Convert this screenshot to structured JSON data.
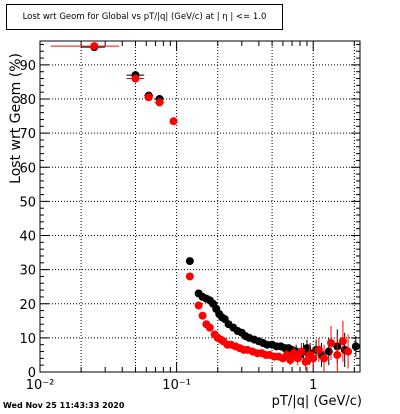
{
  "title": "Lost wrt Geom for Global vs pT/|q| (GeV/c) at | η | <= 1.0",
  "timestamp": "Wed Nov 25 11:43:33 2020",
  "colors": {
    "series_black": "#000000",
    "series_red": "#ff0000",
    "grid": "#000000"
  },
  "chart_data": {
    "type": "scatter",
    "xlabel": "pT/|q| (GeV/c)",
    "ylabel": "Lost wrt Geom (%)",
    "xscale": "log",
    "xlim": [
      0.01,
      2.2
    ],
    "ylim": [
      0,
      97
    ],
    "grid": true,
    "x_ticks": [
      {
        "value": 0.01,
        "label": "10⁻²"
      },
      {
        "value": 0.1,
        "label": "10⁻¹"
      },
      {
        "value": 1,
        "label": "1"
      }
    ],
    "y_ticks": [
      0,
      10,
      20,
      30,
      40,
      50,
      60,
      70,
      80,
      90
    ],
    "series": [
      {
        "color": "#000000",
        "points": [
          {
            "x": 0.025,
            "y": 95.2,
            "xerr": [
              0.02,
              0.03
            ]
          },
          {
            "x": 0.05,
            "y": 87.0,
            "xerr": [
              0.043,
              0.058
            ]
          },
          {
            "x": 0.0625,
            "y": 81.0,
            "xerr": [
              0.058,
              0.067
            ]
          },
          {
            "x": 0.075,
            "y": 80.0,
            "xerr": [
              0.069,
              0.081
            ]
          },
          {
            "x": 0.125,
            "y": 32.5,
            "xerr": [
              0.117,
              0.133
            ]
          },
          {
            "x": 0.145,
            "y": 23.0
          },
          {
            "x": 0.155,
            "y": 22.0
          },
          {
            "x": 0.165,
            "y": 21.5
          },
          {
            "x": 0.175,
            "y": 21.0
          },
          {
            "x": 0.185,
            "y": 20.0
          },
          {
            "x": 0.195,
            "y": 18.5
          },
          {
            "x": 0.205,
            "y": 17.0
          },
          {
            "x": 0.215,
            "y": 16.0
          },
          {
            "x": 0.225,
            "y": 15.5
          },
          {
            "x": 0.24,
            "y": 14.0
          },
          {
            "x": 0.26,
            "y": 13.0
          },
          {
            "x": 0.28,
            "y": 12.0
          },
          {
            "x": 0.3,
            "y": 11.5
          },
          {
            "x": 0.32,
            "y": 10.5
          },
          {
            "x": 0.34,
            "y": 10.0
          },
          {
            "x": 0.37,
            "y": 9.5
          },
          {
            "x": 0.4,
            "y": 9.0
          },
          {
            "x": 0.43,
            "y": 8.5
          },
          {
            "x": 0.46,
            "y": 8.0
          },
          {
            "x": 0.5,
            "y": 8.0
          },
          {
            "x": 0.54,
            "y": 7.5
          },
          {
            "x": 0.58,
            "y": 7.5
          },
          {
            "x": 0.62,
            "y": 7.0
          },
          {
            "x": 0.66,
            "y": 7.0
          },
          {
            "x": 0.7,
            "y": 6.5
          },
          {
            "x": 0.75,
            "y": 6.0,
            "yerr": 2.0
          },
          {
            "x": 0.8,
            "y": 5.0,
            "yerr": 2.0
          },
          {
            "x": 0.85,
            "y": 6.0,
            "yerr": 2.5
          },
          {
            "x": 0.9,
            "y": 7.0,
            "yerr": 2.5
          },
          {
            "x": 0.95,
            "y": 5.5,
            "yerr": 3.0
          },
          {
            "x": 1.05,
            "y": 6.5,
            "yerr": 3.0
          },
          {
            "x": 1.15,
            "y": 5.0,
            "yerr": 3.5
          },
          {
            "x": 1.3,
            "y": 6.0,
            "yerr": 4.0
          },
          {
            "x": 1.5,
            "y": 7.5,
            "yerr": 5.0
          },
          {
            "x": 1.7,
            "y": 6.5,
            "yerr": 5.0
          },
          {
            "x": 2.05,
            "y": 7.5,
            "yerr": 3.0,
            "xerr": [
              1.95,
              2.15
            ]
          }
        ]
      },
      {
        "color": "#ff0000",
        "points": [
          {
            "x": 0.025,
            "y": 95.5,
            "xerr": [
              0.012,
              0.038
            ]
          },
          {
            "x": 0.05,
            "y": 86.0,
            "xerr": [
              0.043,
              0.058
            ]
          },
          {
            "x": 0.0625,
            "y": 80.5,
            "xerr": [
              0.058,
              0.067
            ]
          },
          {
            "x": 0.075,
            "y": 79.0,
            "xerr": [
              0.069,
              0.081
            ]
          },
          {
            "x": 0.095,
            "y": 73.5,
            "xerr": [
              0.09,
              0.1
            ]
          },
          {
            "x": 0.125,
            "y": 28.0,
            "xerr": [
              0.117,
              0.133
            ]
          },
          {
            "x": 0.145,
            "y": 19.5
          },
          {
            "x": 0.155,
            "y": 16.5
          },
          {
            "x": 0.165,
            "y": 14.0
          },
          {
            "x": 0.175,
            "y": 13.0
          },
          {
            "x": 0.19,
            "y": 11.0
          },
          {
            "x": 0.2,
            "y": 10.0
          },
          {
            "x": 0.21,
            "y": 9.5
          },
          {
            "x": 0.22,
            "y": 9.0
          },
          {
            "x": 0.235,
            "y": 8.0
          },
          {
            "x": 0.25,
            "y": 8.0
          },
          {
            "x": 0.27,
            "y": 7.5
          },
          {
            "x": 0.29,
            "y": 7.0
          },
          {
            "x": 0.31,
            "y": 6.5
          },
          {
            "x": 0.33,
            "y": 6.5
          },
          {
            "x": 0.36,
            "y": 6.0
          },
          {
            "x": 0.39,
            "y": 5.5
          },
          {
            "x": 0.42,
            "y": 5.5
          },
          {
            "x": 0.45,
            "y": 5.0
          },
          {
            "x": 0.48,
            "y": 5.0
          },
          {
            "x": 0.52,
            "y": 4.5
          },
          {
            "x": 0.56,
            "y": 4.5
          },
          {
            "x": 0.6,
            "y": 4.0
          },
          {
            "x": 0.64,
            "y": 5.0,
            "yerr": 1.5
          },
          {
            "x": 0.68,
            "y": 3.5,
            "yerr": 1.5
          },
          {
            "x": 0.72,
            "y": 5.5,
            "yerr": 2.0
          },
          {
            "x": 0.77,
            "y": 4.0,
            "yerr": 2.0
          },
          {
            "x": 0.82,
            "y": 6.0,
            "yerr": 2.5
          },
          {
            "x": 0.88,
            "y": 3.0,
            "yerr": 2.5
          },
          {
            "x": 0.94,
            "y": 5.0,
            "yerr": 3.0
          },
          {
            "x": 1.0,
            "y": 4.0,
            "yerr": 3.0
          },
          {
            "x": 1.1,
            "y": 6.5,
            "yerr": 3.5
          },
          {
            "x": 1.2,
            "y": 4.0,
            "yerr": 4.0
          },
          {
            "x": 1.35,
            "y": 8.5,
            "yerr": 5.0
          },
          {
            "x": 1.5,
            "y": 5.0,
            "yerr": 6.0
          },
          {
            "x": 1.65,
            "y": 9.0,
            "yerr": 6.0
          },
          {
            "x": 1.8,
            "y": 6.0,
            "yerr": 5.0
          }
        ]
      }
    ]
  }
}
